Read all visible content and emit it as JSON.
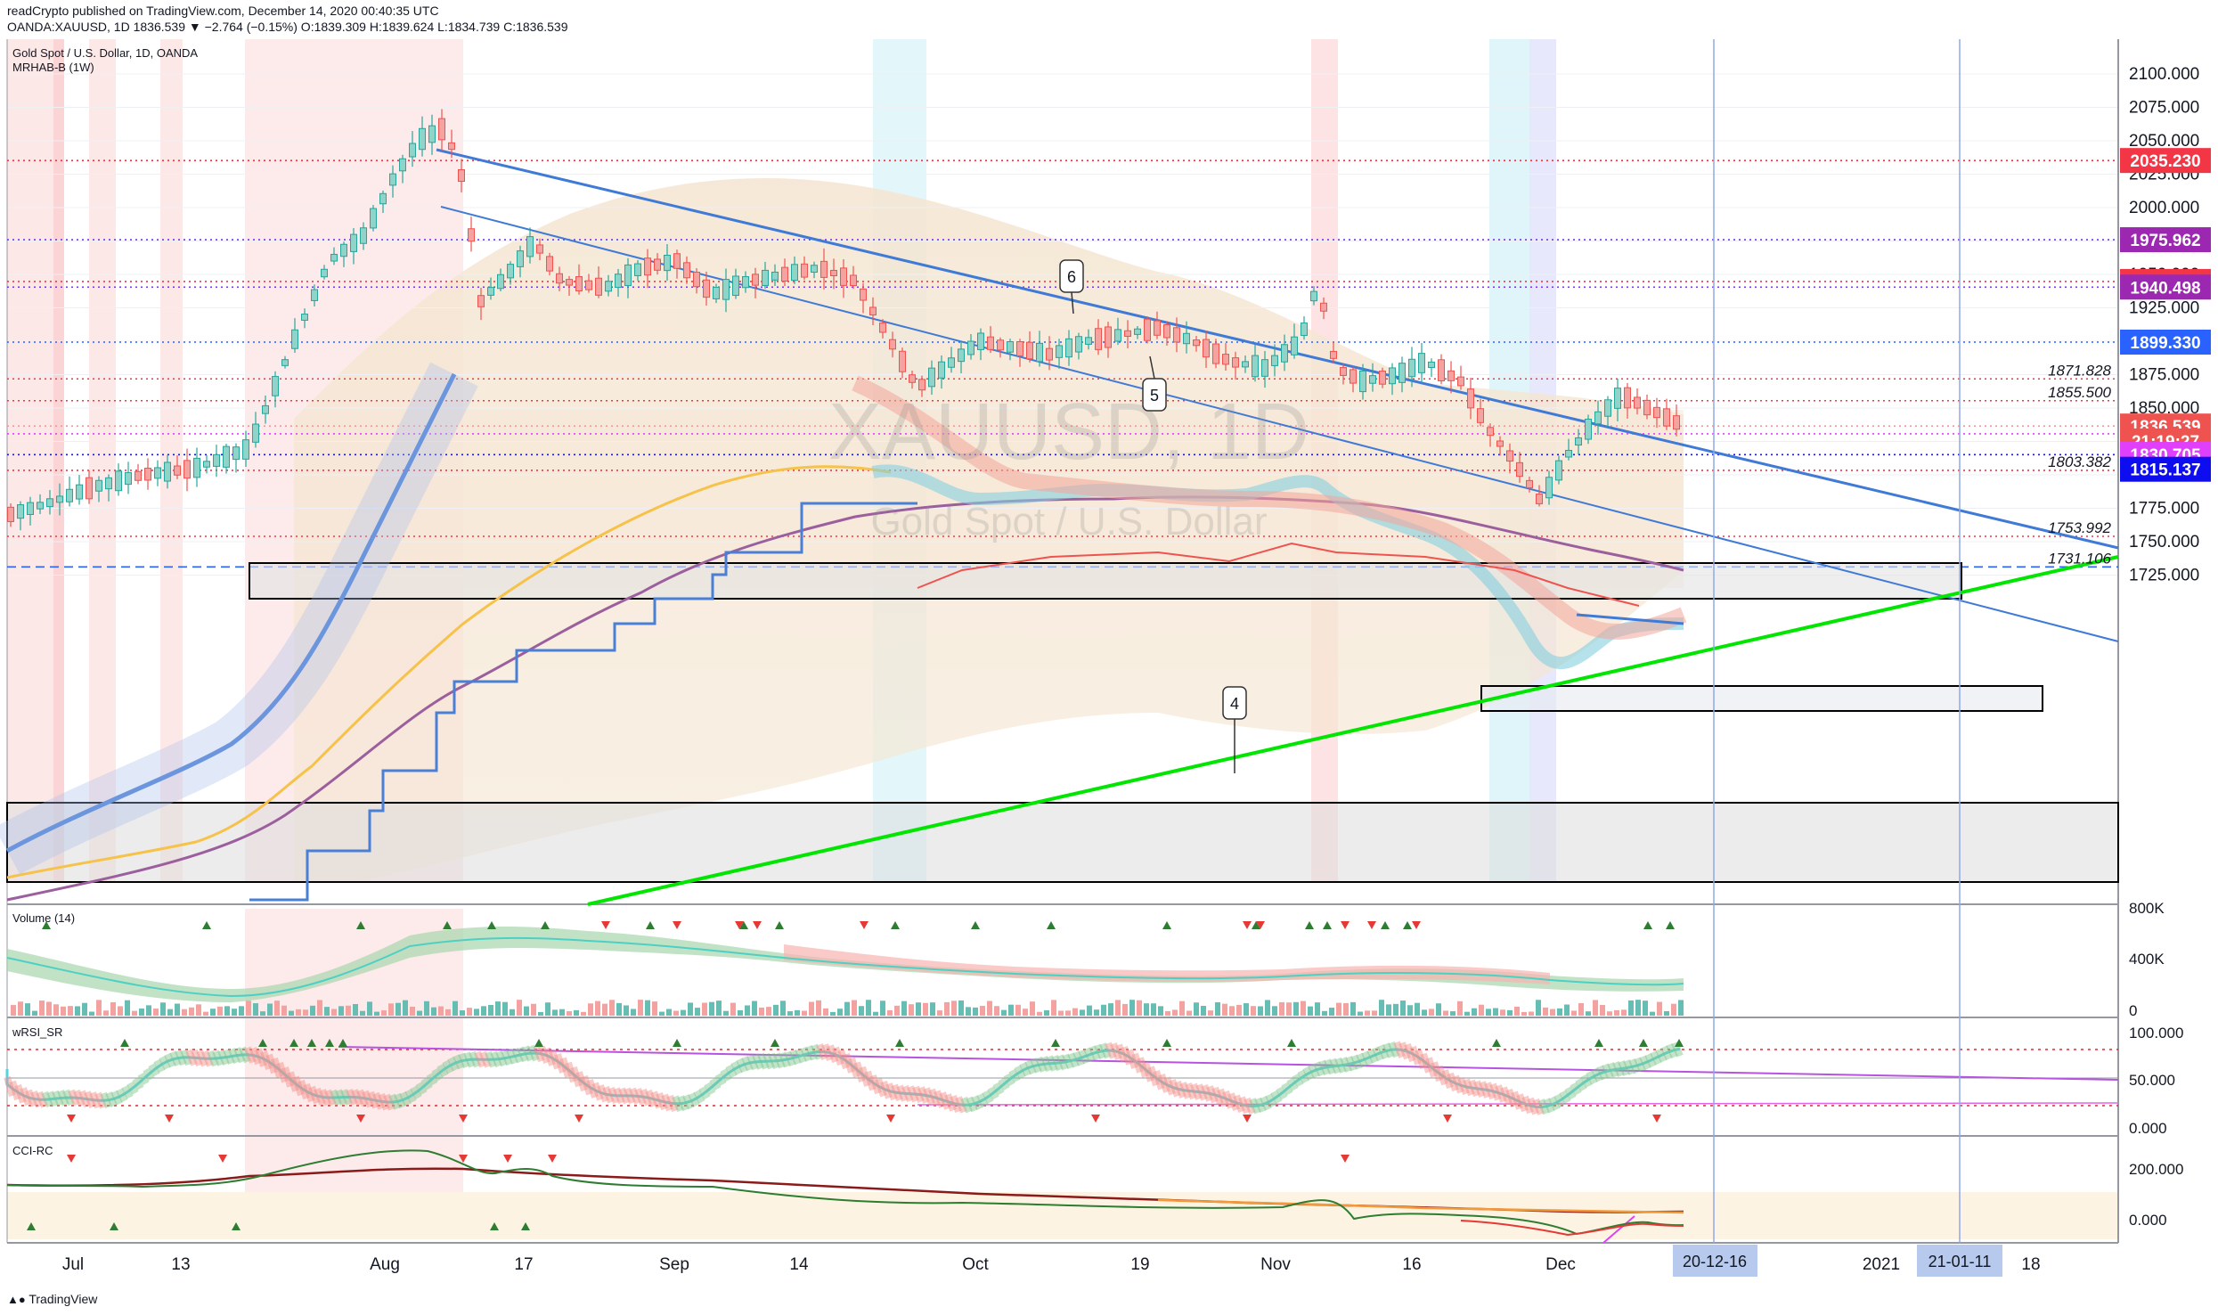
{
  "header": {
    "publisher_line": "readCrypto published on TradingView.com, December 14, 2020 00:40:35 UTC",
    "ohlc_line": "OANDA:XAUUSD, 1D  1836.539  ▼ −2.764 (−0.15%) O:1839.309 H:1839.624 L:1834.739 C:1836.539"
  },
  "footer": {
    "brand": "TradingView"
  },
  "chart_data": [
    {
      "type": "candlestick",
      "title": "Gold Spot / U.S. Dollar, 1D, OANDA",
      "indicator_label": "MRHAB-B (1W)",
      "watermark_symbol": "XAUUSD, 1D",
      "watermark_name": "Gold Spot / U.S. Dollar",
      "ylim": [
        1715,
        2115
      ],
      "y_ticks": [
        "2100.000",
        "2075.000",
        "2050.000",
        "2025.000",
        "2000.000",
        "1975.000",
        "1950.000",
        "1925.000",
        "1900.000",
        "1875.000",
        "1850.000",
        "1825.000",
        "1800.000",
        "1775.000",
        "1750.000",
        "1725.000"
      ],
      "x_ticks": [
        "Jul",
        "13",
        "Aug",
        "17",
        "Sep",
        "14",
        "Oct",
        "19",
        "Nov",
        "16",
        "Dec",
        "2021",
        "18"
      ],
      "x_highlight_labels": [
        "20-12-16",
        "21-01-11"
      ],
      "price_labels": [
        {
          "value": "2035.230",
          "price": 2035.23,
          "color": "#f23645"
        },
        {
          "value": "1975.962",
          "price": 1975.962,
          "color": "#9c27b0"
        },
        {
          "value": "1944.714",
          "price": 1944.714,
          "color": "#f23645"
        },
        {
          "value": "1940.498",
          "price": 1940.498,
          "color": "#9c27b0"
        },
        {
          "value": "1899.330",
          "price": 1899.33,
          "color": "#2962ff"
        },
        {
          "value": "1836.539",
          "price": 1836.539,
          "color": "#ef5350"
        },
        {
          "value": "21:19:27",
          "price": 1825.4,
          "color": "#ef5350"
        },
        {
          "value": "1830.705",
          "price": 1815.3,
          "color": "#e040fb"
        },
        {
          "value": "1815.137",
          "price": 1804.2,
          "color": "#0d0df0"
        }
      ],
      "level_labels": [
        {
          "value": "1871.828",
          "price": 1871.828
        },
        {
          "value": "1855.500",
          "price": 1855.5
        },
        {
          "value": "1803.382",
          "price": 1803.382
        },
        {
          "value": "1753.992",
          "price": 1753.992
        },
        {
          "value": "1731.106",
          "price": 1731.106
        }
      ],
      "callouts": [
        "4",
        "5",
        "6"
      ],
      "colors": {
        "up": "#26a69a",
        "down": "#ef5350",
        "trend_green": "#00e600",
        "trend_blue": "#3f7ad6"
      }
    },
    {
      "type": "area",
      "title": "Volume (14)",
      "y_ticks": [
        "800K",
        "400K",
        "0"
      ]
    },
    {
      "type": "line",
      "title": "wRSI_SR",
      "y_ticks": [
        "100.000",
        "50.000",
        "0.000"
      ]
    },
    {
      "type": "line",
      "title": "CCI-RC",
      "y_ticks": [
        "200.000",
        "0.000"
      ]
    }
  ]
}
